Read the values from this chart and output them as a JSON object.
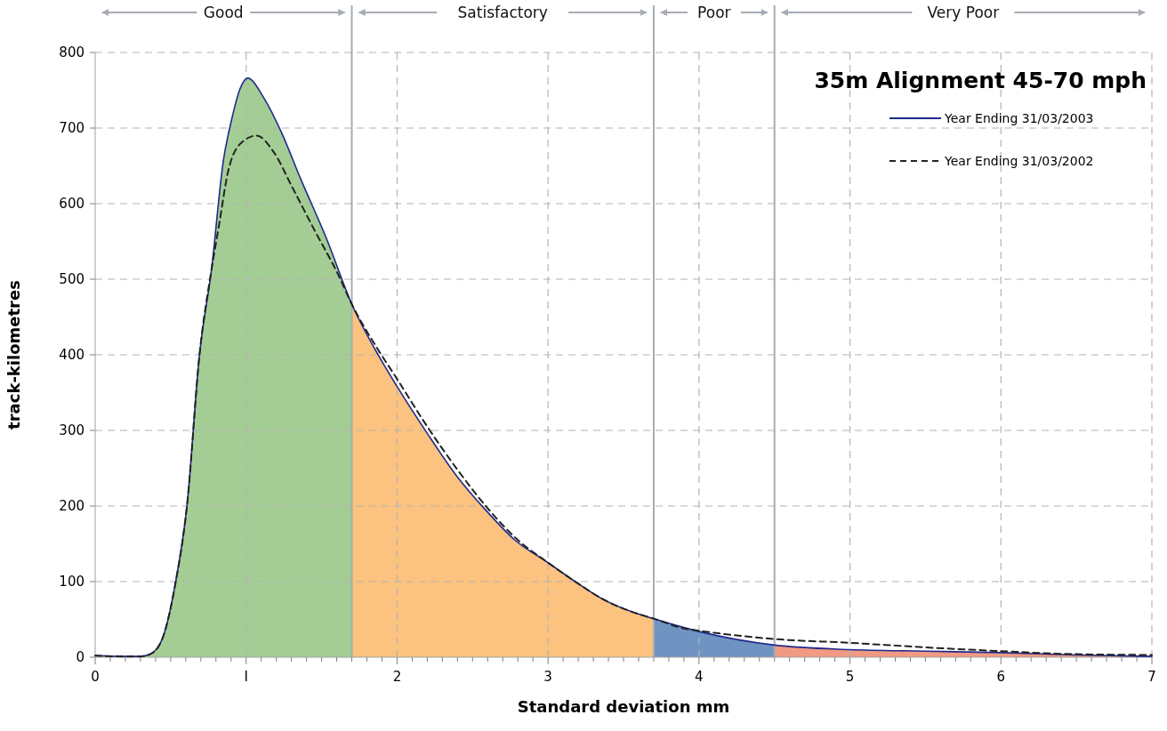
{
  "chart_data": {
    "type": "line",
    "title": "35m Alignment 45-70 mph",
    "xlabel": "Standard deviation mm",
    "ylabel": "track-kilometres",
    "xlim": [
      0,
      7
    ],
    "ylim": [
      0,
      800
    ],
    "xticks": [
      0,
      {
        "value": 0.1,
        "label": null
      },
      {
        "value": 0.2,
        "label": null
      },
      {
        "value": 0.3,
        "label": null
      },
      {
        "value": 0.4,
        "label": null
      },
      {
        "value": 0.5,
        "label": null
      },
      {
        "value": 0.6,
        "label": null
      },
      {
        "value": 0.7,
        "label": null
      },
      {
        "value": 0.8,
        "label": null
      },
      {
        "value": 0.9,
        "label": null
      },
      {
        "value": 1,
        "label": "I"
      },
      {
        "value": 1.1,
        "label": null
      },
      {
        "value": 1.2,
        "label": null
      },
      {
        "value": 1.3,
        "label": null
      },
      {
        "value": 1.4,
        "label": null
      },
      {
        "value": 1.5,
        "label": null
      },
      {
        "value": 1.6,
        "label": null
      },
      {
        "value": 1.7,
        "label": null
      },
      {
        "value": 1.8,
        "label": null
      },
      {
        "value": 1.9,
        "label": null
      },
      2,
      {
        "value": 2.1,
        "label": null
      },
      {
        "value": 2.2,
        "label": null
      },
      {
        "value": 2.3,
        "label": null
      },
      {
        "value": 2.4,
        "label": null
      },
      {
        "value": 2.5,
        "label": null
      },
      {
        "value": 2.6,
        "label": null
      },
      {
        "value": 2.7,
        "label": null
      },
      {
        "value": 2.8,
        "label": null
      },
      {
        "value": 2.9,
        "label": null
      },
      3,
      {
        "value": 3.1,
        "label": null
      },
      {
        "value": 3.2,
        "label": null
      },
      {
        "value": 3.3,
        "label": null
      },
      {
        "value": 3.4,
        "label": null
      },
      {
        "value": 3.5,
        "label": null
      },
      {
        "value": 3.6,
        "label": null
      },
      {
        "value": 3.7,
        "label": null
      },
      {
        "value": 3.8,
        "label": null
      },
      {
        "value": 3.9,
        "label": null
      },
      4,
      {
        "value": 4.1,
        "label": null
      },
      {
        "value": 4.2,
        "label": null
      },
      {
        "value": 4.3,
        "label": null
      },
      {
        "value": 4.4,
        "label": null
      },
      {
        "value": 4.5,
        "label": null
      },
      {
        "value": 4.6,
        "label": null
      },
      {
        "value": 4.7,
        "label": null
      },
      {
        "value": 4.8,
        "label": null
      },
      {
        "value": 4.9,
        "label": null
      },
      5,
      {
        "value": 5.1,
        "label": null
      },
      {
        "value": 5.2,
        "label": null
      },
      {
        "value": 5.3,
        "label": null
      },
      {
        "value": 5.4,
        "label": null
      },
      {
        "value": 5.5,
        "label": null
      },
      {
        "value": 5.6,
        "label": null
      },
      {
        "value": 5.7,
        "label": null
      },
      {
        "value": 5.8,
        "label": null
      },
      {
        "value": 5.9,
        "label": null
      },
      6,
      {
        "value": 6.1,
        "label": null
      },
      {
        "value": 6.2,
        "label": null
      },
      {
        "value": 6.3,
        "label": null
      },
      {
        "value": 6.4,
        "label": null
      },
      {
        "value": 6.5,
        "label": null
      },
      {
        "value": 6.6,
        "label": null
      },
      {
        "value": 6.7,
        "label": null
      },
      {
        "value": 6.8,
        "label": null
      },
      {
        "value": 6.9,
        "label": null
      },
      7
    ],
    "yticks": [
      0,
      100,
      200,
      300,
      400,
      500,
      600,
      700,
      800
    ],
    "grid": true,
    "legend": "top right",
    "bands": [
      {
        "axis": "x",
        "from": 0,
        "to": 1.7,
        "label": "Good",
        "color": "#a3cd95"
      },
      {
        "axis": "x",
        "from": 1.7,
        "to": 3.7,
        "label": "Satisfactory",
        "color": "#fbc37f"
      },
      {
        "axis": "x",
        "from": 3.7,
        "to": 4.5,
        "label": "Poor",
        "color": "#7094c2"
      },
      {
        "axis": "x",
        "from": 4.5,
        "to": 7,
        "label": "Very Poor",
        "color": "#f09a83"
      }
    ],
    "series": [
      {
        "name": "Year Ending 31/03/2003",
        "color": "#1f2a8c",
        "line_style": "solid",
        "x": [
          0,
          0.2,
          0.3,
          0.365,
          0.446,
          0.53,
          0.61,
          0.69,
          0.77,
          0.85,
          0.905,
          0.96,
          1.01,
          1.12,
          1.23,
          1.365,
          1.53,
          1.7,
          1.88,
          2.0,
          2.2,
          2.39,
          2.59,
          2.78,
          3.0,
          3.18,
          3.37,
          3.57,
          3.7,
          4.0,
          4.5,
          5.0,
          5.5,
          6.0,
          6.5,
          7.0
        ],
        "values": [
          2,
          1,
          1,
          4,
          25,
          96,
          204,
          398,
          512,
          658,
          712,
          752,
          766,
          739,
          696,
          631,
          555,
          467,
          398,
          358,
          296,
          241,
          194,
          155,
          125,
          100,
          76,
          59,
          51,
          34,
          16,
          10,
          8,
          6,
          3,
          1
        ]
      },
      {
        "name": "Year Ending 31/03/2002",
        "color": "#222222",
        "line_style": "dashed",
        "x": [
          0,
          0.2,
          0.3,
          0.365,
          0.446,
          0.53,
          0.61,
          0.69,
          0.77,
          0.82,
          0.88,
          0.96,
          1.07,
          1.18,
          1.31,
          1.45,
          1.61,
          1.7,
          1.88,
          2.0,
          2.2,
          2.4,
          2.6,
          2.8,
          3.0,
          3.18,
          3.37,
          3.57,
          3.7,
          3.9,
          4.0,
          4.5,
          5.0,
          5.5,
          6.0,
          6.5,
          7.0
        ],
        "values": [
          2,
          1,
          1,
          4,
          25,
          96,
          204,
          398,
          512,
          571,
          642,
          679,
          690,
          669,
          620,
          566,
          506,
          467,
          405,
          368,
          305,
          248,
          197,
          155,
          125,
          100,
          76,
          59,
          51,
          38,
          35,
          24,
          19,
          13,
          8,
          4,
          3
        ]
      }
    ]
  }
}
